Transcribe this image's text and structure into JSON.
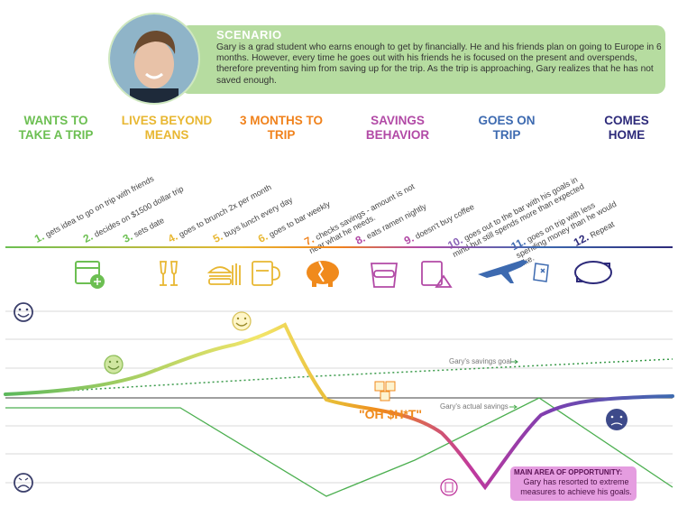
{
  "scenario": {
    "title": "SCENARIO",
    "text": "Gary is a grad student who earns enough to get by financially. He and his friends plan on going to Europe in 6 months. However, every time he goes out with his friends he is focused on the present and overspends, therefore preventing him from saving up for the trip. As the trip is approaching, Gary realizes that he has not saved enough."
  },
  "phases": [
    {
      "label": "WANTS TO TAKE A TRIP",
      "color": "#6cbf52"
    },
    {
      "label": "LIVES BEYOND MEANS",
      "color": "#e8b732"
    },
    {
      "label": "3 MONTHS TO TRIP",
      "color": "#f0821c"
    },
    {
      "label": "SAVINGS BEHAVIOR",
      "color": "#b24aa6"
    },
    {
      "label": "GOES ON TRIP",
      "color": "#3d6ab0"
    },
    {
      "label": "COMES HOME",
      "color": "#2d2a7a"
    }
  ],
  "steps": [
    {
      "num": "1.",
      "text": "gets idea to go on trip with friends",
      "color": "#6cbf52"
    },
    {
      "num": "2.",
      "text": "decides on $1500 dollar trip",
      "color": "#6cbf52"
    },
    {
      "num": "3.",
      "text": "sets date",
      "color": "#6cbf52"
    },
    {
      "num": "4.",
      "text": "goes to brunch 2x per month",
      "color": "#e8b732"
    },
    {
      "num": "5.",
      "text": "buys lunch every day",
      "color": "#e8b732"
    },
    {
      "num": "6.",
      "text": "goes to bar weekly",
      "color": "#e8b732"
    },
    {
      "num": "7.",
      "text": "checks savings - amount is not near what he needs.",
      "color": "#f0821c"
    },
    {
      "num": "8.",
      "text": "eats ramen nightly",
      "color": "#b24aa6"
    },
    {
      "num": "9.",
      "text": "doesn't buy coffee",
      "color": "#b24aa6"
    },
    {
      "num": "10.",
      "text": "goes out to the bar with his goals in mind but still spends more than expected",
      "color": "#8a63b8"
    },
    {
      "num": "11.",
      "text": "goes on trip with less spending money than he would like.",
      "color": "#3d6ab0"
    },
    {
      "num": "12.",
      "text": "Repeat",
      "color": "#2d2a7a"
    }
  ],
  "annotations": {
    "savings_goal": "Gary's savings goal",
    "actual_savings": "Gary's actual savings",
    "oh_shit": "\"OH $H*T\"",
    "opportunity_title": "MAIN AREA OF OPPORTUNITY:",
    "opportunity_text": "Gary has resorted to extreme measures to achieve his goals."
  },
  "icons": [
    "calendar-plane-icon",
    "champagne-icon",
    "burger-fries-icon",
    "beer-glass-icon",
    "broken-piggy-bank-icon",
    "ramen-cup-icon",
    "no-drink-icon",
    "airplane-icon",
    "wallet-icon",
    "repeat-arrows-icon"
  ],
  "colors": {
    "scenario_bg": "#b6dca0",
    "goal_line": "#3a9a4a",
    "actual_line": "#4caf50",
    "grid": "#d9d9d9"
  }
}
